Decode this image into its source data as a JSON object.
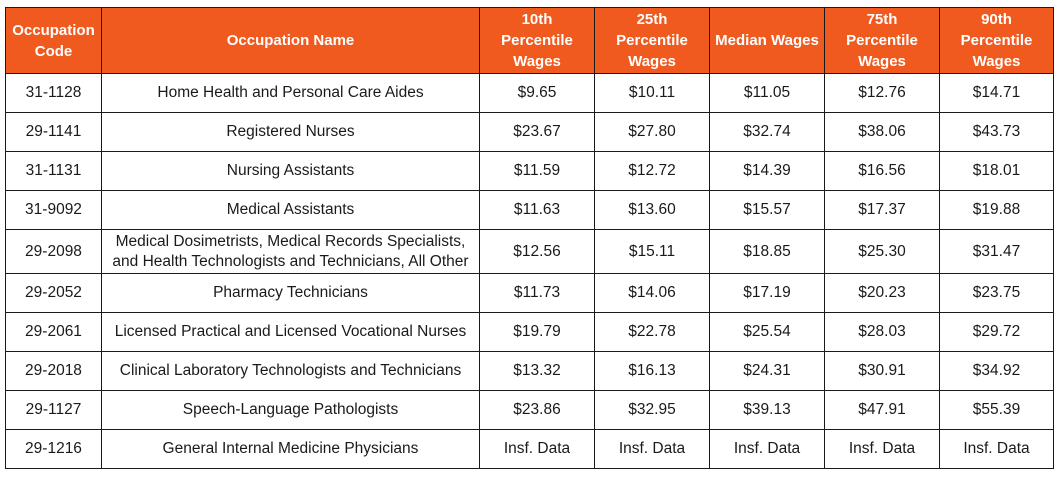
{
  "colors": {
    "header_bg": "#f05a1e",
    "header_text": "#ffffff",
    "border": "#1a1a1a",
    "cell_text": "#1a1a1a"
  },
  "table": {
    "headers": [
      "Occupation Code",
      "Occupation Name",
      "10th Percentile Wages",
      "25th Percentile Wages",
      "Median Wages",
      "75th Percentile Wages",
      "90th Percentile Wages"
    ],
    "rows": [
      [
        "31-1128",
        "Home Health and Personal Care Aides",
        "$9.65",
        "$10.11",
        "$11.05",
        "$12.76",
        "$14.71"
      ],
      [
        "29-1141",
        "Registered Nurses",
        "$23.67",
        "$27.80",
        "$32.74",
        "$38.06",
        "$43.73"
      ],
      [
        "31-1131",
        "Nursing Assistants",
        "$11.59",
        "$12.72",
        "$14.39",
        "$16.56",
        "$18.01"
      ],
      [
        "31-9092",
        "Medical Assistants",
        "$11.63",
        "$13.60",
        "$15.57",
        "$17.37",
        "$19.88"
      ],
      [
        "29-2098",
        "Medical Dosimetrists, Medical Records Specialists, and Health Technologists and Technicians, All Other",
        "$12.56",
        "$15.11",
        "$18.85",
        "$25.30",
        "$31.47"
      ],
      [
        "29-2052",
        "Pharmacy Technicians",
        "$11.73",
        "$14.06",
        "$17.19",
        "$20.23",
        "$23.75"
      ],
      [
        "29-2061",
        "Licensed Practical and Licensed Vocational Nurses",
        "$19.79",
        "$22.78",
        "$25.54",
        "$28.03",
        "$29.72"
      ],
      [
        "29-2018",
        "Clinical Laboratory Technologists and Technicians",
        "$13.32",
        "$16.13",
        "$24.31",
        "$30.91",
        "$34.92"
      ],
      [
        "29-1127",
        "Speech-Language Pathologists",
        "$23.86",
        "$32.95",
        "$39.13",
        "$47.91",
        "$55.39"
      ],
      [
        "29-1216",
        "General Internal Medicine Physicians",
        "Insf. Data",
        "Insf. Data",
        "Insf. Data",
        "Insf. Data",
        "Insf. Data"
      ]
    ]
  }
}
